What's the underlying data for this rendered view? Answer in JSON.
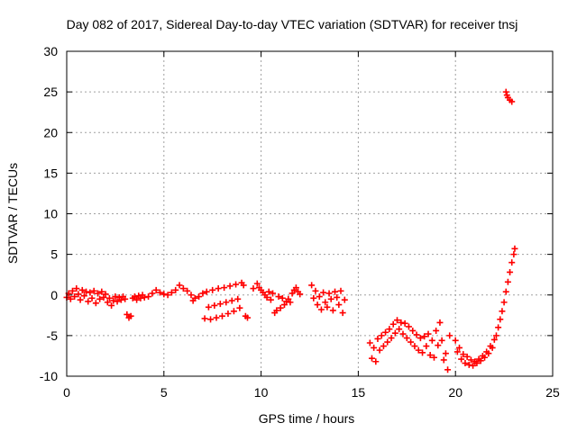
{
  "chart_data": {
    "type": "scatter",
    "title": "Day 082 of 2017, Sidereal Day-to-day VTEC variation (SDTVAR) for receiver tnsj",
    "xlabel": "GPS time / hours",
    "ylabel": "SDTVAR / TECUs",
    "xlim": [
      0,
      25
    ],
    "ylim": [
      -10,
      30
    ],
    "xticks": [
      0,
      5,
      10,
      15,
      20,
      25
    ],
    "yticks": [
      -10,
      -5,
      0,
      5,
      10,
      15,
      20,
      25,
      30
    ],
    "grid": true,
    "marker": "+",
    "color": "#ff0000",
    "series": [
      {
        "name": "SDTVAR",
        "points": [
          [
            0.0,
            -0.3
          ],
          [
            0.1,
            0.2
          ],
          [
            0.2,
            -0.5
          ],
          [
            0.3,
            0.5
          ],
          [
            0.4,
            -0.2
          ],
          [
            0.5,
            0.8
          ],
          [
            0.6,
            0.1
          ],
          [
            0.7,
            -0.6
          ],
          [
            0.8,
            0.6
          ],
          [
            0.9,
            -0.1
          ],
          [
            1.0,
            0.4
          ],
          [
            1.1,
            -0.8
          ],
          [
            1.2,
            0.3
          ],
          [
            1.3,
            -0.4
          ],
          [
            1.4,
            0.5
          ],
          [
            1.5,
            -1.0
          ],
          [
            1.6,
            0.2
          ],
          [
            1.7,
            -0.5
          ],
          [
            1.8,
            0.4
          ],
          [
            1.9,
            -0.3
          ],
          [
            2.0,
            0.1
          ],
          [
            2.1,
            -0.9
          ],
          [
            2.2,
            -0.4
          ],
          [
            2.3,
            -1.3
          ],
          [
            2.4,
            -0.7
          ],
          [
            2.5,
            -0.2
          ],
          [
            2.6,
            -0.8
          ],
          [
            2.7,
            -0.3
          ],
          [
            2.8,
            -0.6
          ],
          [
            2.9,
            -0.2
          ],
          [
            3.0,
            -0.5
          ],
          [
            3.1,
            -2.4
          ],
          [
            3.2,
            -2.8
          ],
          [
            3.3,
            -2.6
          ],
          [
            3.4,
            -0.4
          ],
          [
            3.5,
            -0.2
          ],
          [
            3.6,
            -0.6
          ],
          [
            3.7,
            -0.1
          ],
          [
            3.8,
            -0.4
          ],
          [
            3.9,
            0.0
          ],
          [
            4.0,
            -0.3
          ],
          [
            4.2,
            -0.2
          ],
          [
            4.4,
            0.2
          ],
          [
            4.6,
            0.6
          ],
          [
            4.8,
            0.3
          ],
          [
            5.0,
            0.1
          ],
          [
            5.2,
            0.0
          ],
          [
            5.4,
            0.3
          ],
          [
            5.6,
            0.6
          ],
          [
            5.8,
            1.2
          ],
          [
            6.0,
            0.8
          ],
          [
            6.2,
            0.5
          ],
          [
            6.4,
            0.0
          ],
          [
            6.5,
            -0.7
          ],
          [
            6.6,
            -0.4
          ],
          [
            6.8,
            -0.2
          ],
          [
            7.0,
            0.2
          ],
          [
            7.1,
            -2.9
          ],
          [
            7.2,
            0.4
          ],
          [
            7.3,
            -1.5
          ],
          [
            7.4,
            -3.0
          ],
          [
            7.5,
            0.6
          ],
          [
            7.6,
            -1.3
          ],
          [
            7.7,
            -2.8
          ],
          [
            7.8,
            0.8
          ],
          [
            7.9,
            -1.1
          ],
          [
            8.0,
            -2.6
          ],
          [
            8.1,
            0.9
          ],
          [
            8.2,
            -0.9
          ],
          [
            8.3,
            -2.3
          ],
          [
            8.4,
            1.1
          ],
          [
            8.5,
            -0.7
          ],
          [
            8.6,
            -2.0
          ],
          [
            8.7,
            1.3
          ],
          [
            8.8,
            -0.5
          ],
          [
            8.9,
            -1.6
          ],
          [
            9.0,
            1.5
          ],
          [
            9.1,
            1.2
          ],
          [
            9.2,
            -2.6
          ],
          [
            9.3,
            -2.8
          ],
          [
            9.6,
            0.8
          ],
          [
            9.8,
            1.4
          ],
          [
            9.9,
            0.9
          ],
          [
            10.0,
            0.6
          ],
          [
            10.1,
            0.3
          ],
          [
            10.2,
            0.0
          ],
          [
            10.3,
            -0.3
          ],
          [
            10.4,
            0.4
          ],
          [
            10.5,
            -0.6
          ],
          [
            10.6,
            0.2
          ],
          [
            10.7,
            -2.2
          ],
          [
            10.8,
            -1.9
          ],
          [
            10.9,
            -0.2
          ],
          [
            11.0,
            -1.6
          ],
          [
            11.1,
            -0.4
          ],
          [
            11.2,
            -1.2
          ],
          [
            11.3,
            -0.8
          ],
          [
            11.4,
            -0.5
          ],
          [
            11.5,
            -0.9
          ],
          [
            11.6,
            0.2
          ],
          [
            11.7,
            0.6
          ],
          [
            11.8,
            0.9
          ],
          [
            11.9,
            0.4
          ],
          [
            12.0,
            0.1
          ],
          [
            12.6,
            1.2
          ],
          [
            12.7,
            -0.4
          ],
          [
            12.8,
            0.5
          ],
          [
            12.9,
            -1.2
          ],
          [
            13.0,
            -0.2
          ],
          [
            13.1,
            -1.8
          ],
          [
            13.2,
            0.3
          ],
          [
            13.3,
            -0.9
          ],
          [
            13.4,
            -1.5
          ],
          [
            13.5,
            0.2
          ],
          [
            13.6,
            -0.5
          ],
          [
            13.7,
            -1.9
          ],
          [
            13.8,
            0.4
          ],
          [
            13.9,
            -0.3
          ],
          [
            14.0,
            -1.2
          ],
          [
            14.1,
            0.5
          ],
          [
            14.2,
            -2.2
          ],
          [
            14.3,
            -0.6
          ],
          [
            15.6,
            -5.9
          ],
          [
            15.7,
            -7.8
          ],
          [
            15.8,
            -6.5
          ],
          [
            15.9,
            -8.2
          ],
          [
            16.0,
            -5.4
          ],
          [
            16.1,
            -6.8
          ],
          [
            16.2,
            -5.0
          ],
          [
            16.3,
            -6.3
          ],
          [
            16.4,
            -4.6
          ],
          [
            16.5,
            -5.8
          ],
          [
            16.6,
            -4.2
          ],
          [
            16.7,
            -5.3
          ],
          [
            16.8,
            -3.6
          ],
          [
            16.9,
            -4.7
          ],
          [
            17.0,
            -3.1
          ],
          [
            17.1,
            -4.2
          ],
          [
            17.2,
            -3.4
          ],
          [
            17.3,
            -4.8
          ],
          [
            17.4,
            -3.5
          ],
          [
            17.5,
            -5.3
          ],
          [
            17.6,
            -3.9
          ],
          [
            17.7,
            -5.8
          ],
          [
            17.8,
            -4.4
          ],
          [
            17.9,
            -6.3
          ],
          [
            18.0,
            -4.9
          ],
          [
            18.1,
            -6.8
          ],
          [
            18.2,
            -5.3
          ],
          [
            18.3,
            -7.1
          ],
          [
            18.4,
            -5.1
          ],
          [
            18.5,
            -6.3
          ],
          [
            18.6,
            -4.8
          ],
          [
            18.7,
            -7.4
          ],
          [
            18.8,
            -5.6
          ],
          [
            18.9,
            -7.7
          ],
          [
            19.0,
            -4.4
          ],
          [
            19.1,
            -6.2
          ],
          [
            19.2,
            -3.4
          ],
          [
            19.3,
            -5.6
          ],
          [
            19.4,
            -8.0
          ],
          [
            19.5,
            -7.2
          ],
          [
            19.6,
            -9.2
          ],
          [
            19.7,
            -5.0
          ],
          [
            20.0,
            -5.6
          ],
          [
            20.1,
            -7.0
          ],
          [
            20.2,
            -6.5
          ],
          [
            20.3,
            -7.9
          ],
          [
            20.4,
            -7.3
          ],
          [
            20.5,
            -8.4
          ],
          [
            20.6,
            -7.6
          ],
          [
            20.7,
            -8.6
          ],
          [
            20.8,
            -8.0
          ],
          [
            20.9,
            -8.7
          ],
          [
            21.0,
            -8.2
          ],
          [
            21.1,
            -8.4
          ],
          [
            21.2,
            -7.9
          ],
          [
            21.3,
            -8.1
          ],
          [
            21.4,
            -7.5
          ],
          [
            21.5,
            -7.7
          ],
          [
            21.6,
            -7.0
          ],
          [
            21.7,
            -7.2
          ],
          [
            21.8,
            -6.3
          ],
          [
            21.9,
            -6.5
          ],
          [
            22.0,
            -5.5
          ],
          [
            22.1,
            -5.0
          ],
          [
            22.2,
            -4.0
          ],
          [
            22.3,
            -3.0
          ],
          [
            22.4,
            -2.0
          ],
          [
            22.5,
            -0.9
          ],
          [
            22.6,
            0.4
          ],
          [
            22.7,
            1.6
          ],
          [
            22.8,
            2.8
          ],
          [
            22.9,
            4.0
          ],
          [
            23.0,
            5.0
          ],
          [
            23.05,
            5.7
          ],
          [
            22.6,
            25.0
          ],
          [
            22.65,
            24.6
          ],
          [
            22.7,
            24.3
          ],
          [
            22.8,
            24.0
          ],
          [
            22.9,
            23.8
          ]
        ]
      }
    ]
  }
}
